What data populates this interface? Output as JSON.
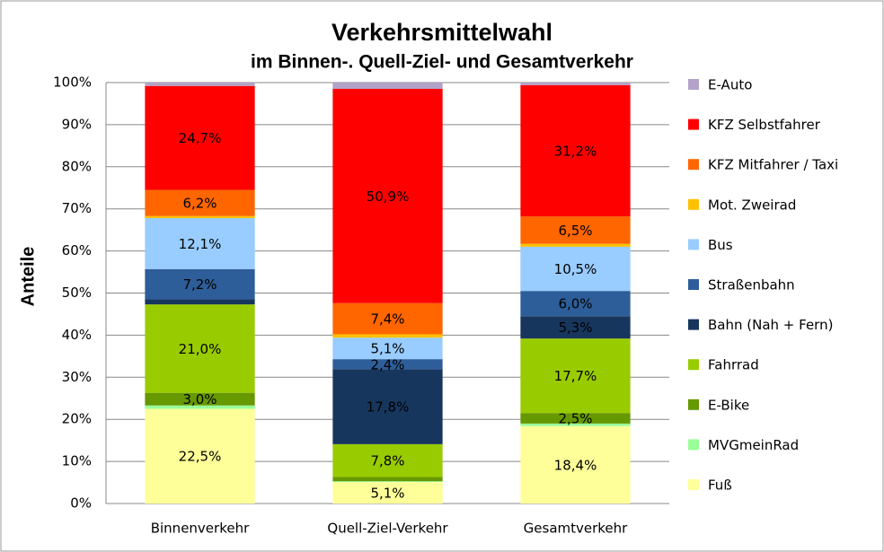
{
  "chart_data": {
    "type": "stacked_bar",
    "title": "Verkehrsmittelwahl",
    "subtitle": "im Binnen-. Quell-Ziel- und Gesamtverkehr",
    "y_label": "Anteile",
    "categories": [
      "Binnenverkehr",
      "Quell-Ziel-Verkehr",
      "Gesamtverkehr"
    ],
    "series": [
      {
        "name": "Fuß",
        "color": "#ffff99",
        "values": [
          22.5,
          5.1,
          18.4
        ],
        "value_labels": [
          "22,5%",
          "5,1%",
          "18,4%"
        ]
      },
      {
        "name": "MVGmeinRad",
        "color": "#99ff99",
        "values": [
          0.8,
          0.2,
          0.6
        ],
        "value_labels": [
          null,
          null,
          null
        ]
      },
      {
        "name": "E-Bike",
        "color": "#669900",
        "values": [
          3.0,
          1.0,
          2.5
        ],
        "value_labels": [
          "3,0%",
          null,
          "2,5%"
        ]
      },
      {
        "name": "Fahrrad",
        "color": "#99cc00",
        "values": [
          21.0,
          7.8,
          17.7
        ],
        "value_labels": [
          "21,0%",
          "7,8%",
          "17,7%"
        ]
      },
      {
        "name": "Bahn (Nah + Fern)",
        "color": "#17365d",
        "values": [
          1.2,
          17.8,
          5.3
        ],
        "value_labels": [
          null,
          "17,8%",
          "5,3%"
        ]
      },
      {
        "name": "Straßenbahn",
        "color": "#2e5e99",
        "values": [
          7.2,
          2.4,
          6.0
        ],
        "value_labels": [
          "7,2%",
          "2,4%",
          "6,0%"
        ]
      },
      {
        "name": "Bus",
        "color": "#99ccff",
        "values": [
          12.1,
          5.1,
          10.5
        ],
        "value_labels": [
          "12,1%",
          "5,1%",
          "10,5%"
        ]
      },
      {
        "name": "Mot. Zweirad",
        "color": "#ffc000",
        "values": [
          0.5,
          0.8,
          0.7
        ],
        "value_labels": [
          null,
          null,
          null
        ]
      },
      {
        "name": "KFZ Mitfahrer / Taxi",
        "color": "#ff6600",
        "values": [
          6.2,
          7.4,
          6.5
        ],
        "value_labels": [
          "6,2%",
          "7,4%",
          "6,5%"
        ]
      },
      {
        "name": "KFZ Selbstfahrer",
        "color": "#ff0000",
        "values": [
          24.7,
          50.9,
          31.2
        ],
        "value_labels": [
          "24,7%",
          "50,9%",
          "31,2%"
        ]
      },
      {
        "name": "E-Auto",
        "color": "#b3a2c7",
        "values": [
          0.8,
          1.5,
          0.6
        ],
        "value_labels": [
          null,
          null,
          null
        ]
      }
    ],
    "ylim": [
      0,
      100
    ],
    "yticks": [
      {
        "value": 0,
        "label": "0%"
      },
      {
        "value": 10,
        "label": "10%"
      },
      {
        "value": 20,
        "label": "20%"
      },
      {
        "value": 30,
        "label": "30%"
      },
      {
        "value": 40,
        "label": "40%"
      },
      {
        "value": 50,
        "label": "50%"
      },
      {
        "value": 60,
        "label": "60%"
      },
      {
        "value": 70,
        "label": "70%"
      },
      {
        "value": 80,
        "label": "80%"
      },
      {
        "value": 90,
        "label": "90%"
      },
      {
        "value": 100,
        "label": "100%"
      }
    ],
    "grid": true,
    "legend": "right"
  }
}
